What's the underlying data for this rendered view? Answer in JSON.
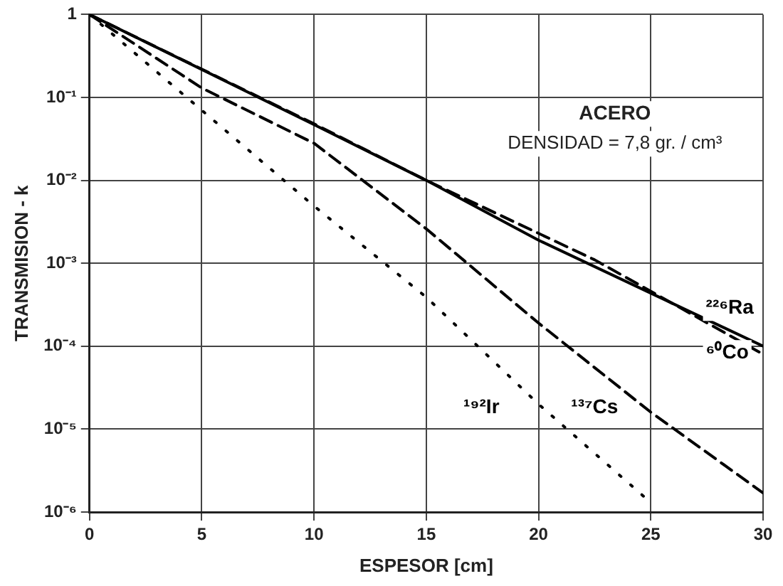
{
  "chart_data": {
    "type": "line",
    "xlabel": "ESPESOR [cm]",
    "ylabel": "TRANSMISION - k",
    "log": "y",
    "xlim": [
      0,
      30
    ],
    "xticks": [
      0,
      5,
      10,
      15,
      20,
      25,
      30
    ],
    "ylim": [
      1e-06,
      1
    ],
    "yticks": [
      {
        "value": 1e-06,
        "label": "10⁻⁶"
      },
      {
        "value": 1e-05,
        "label": "10⁻⁵"
      },
      {
        "value": 0.0001,
        "label": "10⁻⁴"
      },
      {
        "value": 0.001,
        "label": "10⁻³"
      },
      {
        "value": 0.01,
        "label": "10⁻²"
      },
      {
        "value": 0.1,
        "label": "10⁻¹"
      },
      {
        "value": 1,
        "label": "1"
      }
    ],
    "grid": true,
    "legend": false,
    "marker": "none",
    "annotations": [
      "ACERO",
      "DENSIDAD = 7,8 gr. / cm³"
    ],
    "series": [
      {
        "name": "²²⁶Ra",
        "color": "#000000",
        "line_style": "solid",
        "x": [
          0,
          10,
          15,
          20,
          30
        ],
        "values": [
          1,
          0.047,
          0.01,
          0.0019,
          0.0001
        ]
      },
      {
        "name": "⁶⁰Co",
        "color": "#000000",
        "line_style": "dashed",
        "x": [
          0,
          10,
          15,
          22.5,
          30
        ],
        "values": [
          1,
          0.048,
          0.01,
          0.0011,
          8e-05
        ]
      },
      {
        "name": "¹³⁷Cs",
        "color": "#000000",
        "line_style": "dashed",
        "x": [
          0,
          5,
          10,
          15,
          20,
          25,
          30
        ],
        "values": [
          1,
          0.13,
          0.028,
          0.0026,
          0.00019,
          1.6e-05,
          1.7e-06
        ]
      },
      {
        "name": "¹⁹²Ir",
        "color": "#000000",
        "line_style": "dotted",
        "x": [
          0,
          5,
          10,
          15,
          20,
          25
        ],
        "values": [
          1,
          0.07,
          0.0049,
          0.00039,
          2e-05,
          1.3e-06
        ]
      }
    ]
  }
}
